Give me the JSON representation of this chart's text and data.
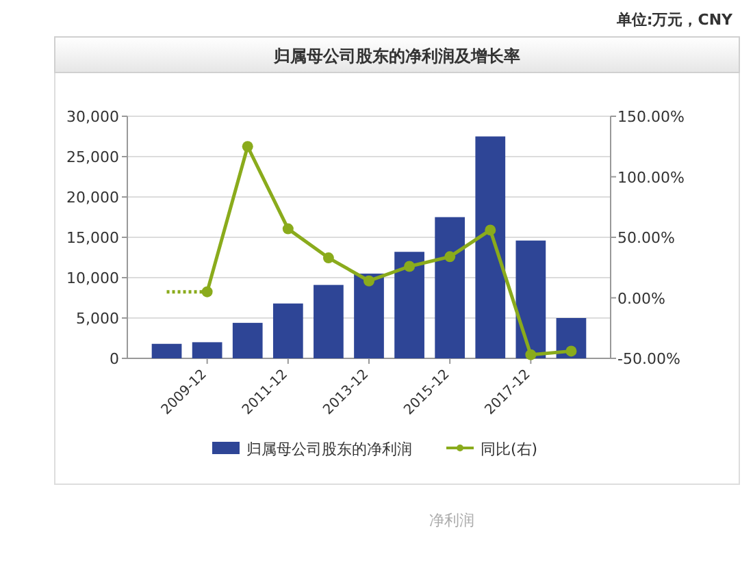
{
  "chart_data": {
    "type": "bar",
    "title": "归属母公司股东的净利润及增长率",
    "categories": [
      null,
      "2009-12",
      null,
      "2011-12",
      null,
      "2013-12",
      null,
      "2015-12",
      null,
      "2017-12",
      null
    ],
    "series": [
      {
        "name": "归属母公司股东的净利润",
        "color": "#2e4596",
        "values": [
          1800,
          2000,
          4400,
          6800,
          9100,
          10500,
          13200,
          17500,
          27500,
          14600,
          5000
        ]
      },
      {
        "name": "同比(右)",
        "type": "line",
        "axis": "y2",
        "color": "#8aab1c",
        "marker": "circle",
        "values": [
          null,
          5,
          125,
          57,
          33,
          14,
          26,
          34,
          56,
          -47,
          -44
        ]
      },
      {
        "type": "line",
        "axis": "y2",
        "color": "#8aab1c",
        "line_style": "dotted",
        "marker": "none",
        "values": [
          5,
          5,
          null,
          null,
          null,
          null,
          null,
          null,
          null,
          null,
          null
        ]
      }
    ],
    "ylim": [
      0,
      30000
    ],
    "yticks": [
      {
        "value": 0,
        "label": "0"
      },
      {
        "value": 5000,
        "label": "5,000"
      },
      {
        "value": 10000,
        "label": "10,000"
      },
      {
        "value": 15000,
        "label": "15,000"
      },
      {
        "value": 20000,
        "label": "20,000"
      },
      {
        "value": 25000,
        "label": "25,000"
      },
      {
        "value": 30000,
        "label": "30,000"
      }
    ],
    "y2lim": [
      -50,
      150
    ],
    "y2ticks": [
      {
        "value": -50,
        "label": "-50.00%"
      },
      {
        "value": 0,
        "label": "0.00%"
      },
      {
        "value": 50,
        "label": "50.00%"
      },
      {
        "value": 100,
        "label": "100.00%"
      },
      {
        "value": 150,
        "label": "150.00%"
      }
    ],
    "grid": "y",
    "legend": "bottom",
    "annotations": [
      "单位:万元，CNY",
      "净利润"
    ]
  }
}
